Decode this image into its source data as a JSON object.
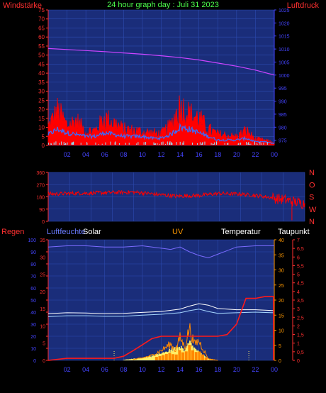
{
  "header": {
    "left_label": "Windstärke",
    "title": "24 hour graph day : Juli 31 2023",
    "right_label": "Luftdruck"
  },
  "colors": {
    "background": "#000000",
    "plot_bg": "#1a2d7a",
    "grid": "#2d4bb0",
    "wind": "#ff0000",
    "gust": "#ff0000",
    "avgwind": "#3a6cff",
    "calm": "#8fe8ff",
    "pressure": "#cc44ff",
    "direction": "#ff0000",
    "humidity": "#7a6bff",
    "rain": "#ff1a1a",
    "temperature": "#ffffff",
    "dewpoint": "#a8d8ff",
    "solar": "#ffee66",
    "uv": "#ff8800",
    "axis_red": "#ff3030",
    "axis_blue": "#4444ff",
    "axis_orange": "#ff9900"
  },
  "chart_data": [
    {
      "type": "line",
      "title": "24 hour graph day : Juli 31 2023",
      "xlabel": "",
      "x_ticks": [
        "02",
        "04",
        "06",
        "08",
        "10",
        "12",
        "14",
        "16",
        "18",
        "20",
        "22",
        "00"
      ],
      "x_range_hours": [
        0,
        24
      ],
      "left_axis": {
        "label": "Windstärke",
        "ticks": [
          "0",
          "5",
          "10",
          "15",
          "20",
          "25",
          "30",
          "35",
          "40",
          "45",
          "50",
          "55",
          "60",
          "65",
          "70",
          "75"
        ],
        "range": [
          0,
          75
        ]
      },
      "right_axis": {
        "label": "Luftdruck",
        "ticks": [
          "975",
          "980",
          "985",
          "990",
          "995",
          "1000",
          "1005",
          "1010",
          "1015",
          "1020",
          "1025"
        ],
        "range": [
          973,
          1025
        ]
      },
      "series": [
        {
          "name": "Luftdruck",
          "axis": "right",
          "x": [
            0,
            2,
            4,
            6,
            8,
            10,
            12,
            14,
            16,
            18,
            20,
            22,
            24
          ],
          "values": [
            1010.2,
            1009.8,
            1009.4,
            1009.0,
            1008.5,
            1008.0,
            1007.4,
            1006.7,
            1005.8,
            1004.6,
            1003.4,
            1001.9,
            1000.0
          ]
        }
      ],
      "wind_envelope": {
        "x": [
          0,
          1,
          2,
          3,
          4,
          5,
          6,
          7,
          8,
          9,
          10,
          11,
          12,
          13,
          14,
          15,
          16,
          17,
          18,
          19,
          20,
          21,
          22,
          23,
          24
        ],
        "gust_max": [
          15,
          28,
          16,
          20,
          11,
          12,
          22,
          18,
          13,
          12,
          11,
          10,
          9,
          16,
          32,
          25,
          22,
          13,
          9,
          8,
          7,
          12,
          5,
          4,
          2
        ],
        "wind_avg": [
          6,
          9,
          7,
          6,
          5,
          5,
          7,
          6,
          5,
          5,
          5,
          4,
          4,
          6,
          10,
          9,
          7,
          5,
          3,
          3,
          3,
          4,
          2,
          2,
          1
        ]
      },
      "grid": true
    },
    {
      "type": "scatter",
      "left_axis": {
        "ticks": [
          "0",
          "90",
          "180",
          "270",
          "360"
        ],
        "range": [
          0,
          360
        ]
      },
      "right_axis": {
        "ticks": [
          "N",
          "W",
          "S",
          "O",
          "N"
        ]
      },
      "x_ticks": [],
      "series": [
        {
          "name": "Windrichtung",
          "x": [
            0,
            2,
            4,
            6,
            8,
            10,
            12,
            14,
            16,
            18,
            20,
            22,
            24
          ],
          "values": [
            200,
            205,
            208,
            212,
            215,
            200,
            185,
            190,
            205,
            200,
            185,
            160,
            130
          ]
        }
      ],
      "grid": true
    },
    {
      "type": "line",
      "legend": [
        "Regen",
        "Luftfeuchte",
        "Solar",
        "UV",
        "Temperatur",
        "Taupunkt"
      ],
      "x_ticks": [
        "02",
        "04",
        "06",
        "08",
        "10",
        "12",
        "14",
        "16",
        "18",
        "20",
        "22",
        "00"
      ],
      "axis_humidity": {
        "ticks": [
          "0",
          "10",
          "20",
          "30",
          "40",
          "50",
          "60",
          "70",
          "80",
          "90",
          "100"
        ],
        "range": [
          0,
          100
        ]
      },
      "axis_rain": {
        "ticks": [
          "0",
          "5",
          "10",
          "15",
          "20",
          "25",
          "30",
          "35"
        ],
        "range": [
          0,
          35
        ]
      },
      "axis_temperature": {
        "ticks": [
          "0",
          "5",
          "10",
          "15",
          "20",
          "25",
          "30",
          "35",
          "40"
        ],
        "range": [
          0,
          40
        ]
      },
      "axis_uv": {
        "ticks": [
          "0",
          "0,5",
          "1",
          "1,5",
          "2",
          "2,5",
          "3",
          "3,5",
          "4",
          "4,5",
          "5",
          "5,5",
          "6",
          "6,5",
          "7"
        ],
        "range": [
          0,
          7
        ]
      },
      "series": [
        {
          "name": "Luftfeuchte",
          "axis": "humidity",
          "x": [
            0,
            2,
            4,
            6,
            8,
            10,
            12,
            13,
            14,
            15,
            16,
            17,
            18,
            19,
            20,
            22,
            24
          ],
          "values": [
            94,
            95,
            95,
            94,
            94,
            95,
            93,
            92,
            94,
            90,
            87,
            85,
            88,
            91,
            94,
            95,
            95
          ]
        },
        {
          "name": "Temperatur",
          "axis": "temperature",
          "x": [
            0,
            2,
            4,
            6,
            8,
            10,
            12,
            14,
            15,
            16,
            17,
            18,
            20,
            22,
            24
          ],
          "values": [
            15.5,
            15.8,
            15.7,
            15.5,
            15.6,
            15.9,
            16.2,
            17.0,
            18.0,
            18.8,
            18.3,
            17.2,
            16.8,
            16.8,
            16.5
          ]
        },
        {
          "name": "Taupunkt",
          "axis": "temperature",
          "x": [
            0,
            2,
            4,
            6,
            8,
            10,
            12,
            14,
            15,
            16,
            17,
            18,
            20,
            22,
            24
          ],
          "values": [
            14.5,
            14.8,
            14.8,
            14.6,
            14.6,
            15.0,
            15.3,
            15.8,
            16.5,
            17.0,
            16.2,
            15.6,
            15.8,
            16.0,
            15.8
          ]
        },
        {
          "name": "Regen",
          "axis": "rain",
          "x": [
            0,
            1,
            2,
            7,
            8,
            9,
            10,
            11,
            12,
            14,
            18,
            19,
            20,
            21,
            22,
            23,
            24
          ],
          "values": [
            0,
            0.3,
            0.6,
            0.6,
            1.2,
            2.8,
            4.5,
            6.3,
            7.0,
            7.0,
            7.0,
            7.5,
            10.5,
            18,
            18,
            18.5,
            18.5
          ]
        },
        {
          "name": "UV",
          "axis": "uv",
          "x": [
            9,
            10,
            11,
            12,
            13,
            13.5,
            14,
            14.5,
            15,
            15.5,
            16,
            17,
            18
          ],
          "values": [
            0.05,
            0.15,
            0.3,
            0.6,
            1.0,
            0.6,
            1.4,
            0.8,
            2.0,
            1.0,
            1.2,
            0.1,
            0
          ]
        },
        {
          "name": "Solar",
          "axis": "humidity",
          "x": [
            8,
            9,
            10,
            11,
            12,
            13,
            14,
            14.5,
            15,
            15.5,
            16,
            17,
            18
          ],
          "values": [
            0.5,
            1.5,
            2.5,
            4,
            7,
            10,
            13,
            9,
            18,
            12,
            8,
            1.5,
            0
          ]
        }
      ],
      "grid": true
    }
  ]
}
